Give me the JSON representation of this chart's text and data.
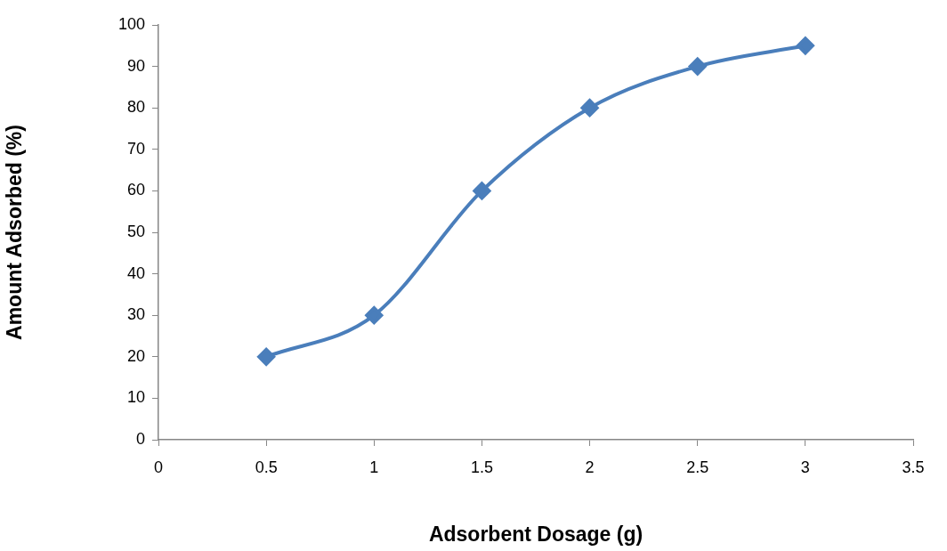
{
  "chart_data": {
    "type": "line",
    "xlabel": "Adsorbent Dosage (g)",
    "ylabel": "Amount Adsorbed (%)",
    "x": [
      0.5,
      1,
      1.5,
      2,
      2.5,
      3
    ],
    "series": [
      {
        "color": "#4a7ebb",
        "values": [
          20,
          30,
          60,
          80,
          90,
          95
        ]
      }
    ],
    "xlim": [
      0,
      3.5
    ],
    "xticks": [
      0,
      0.5,
      1,
      1.5,
      2,
      2.5,
      3,
      3.5
    ],
    "ylim": [
      0,
      100
    ],
    "yticks": [
      0,
      10,
      20,
      30,
      40,
      50,
      60,
      70,
      80,
      90,
      100
    ],
    "marker": "diamond",
    "line_style": "solid",
    "grid": false,
    "legend": false
  }
}
